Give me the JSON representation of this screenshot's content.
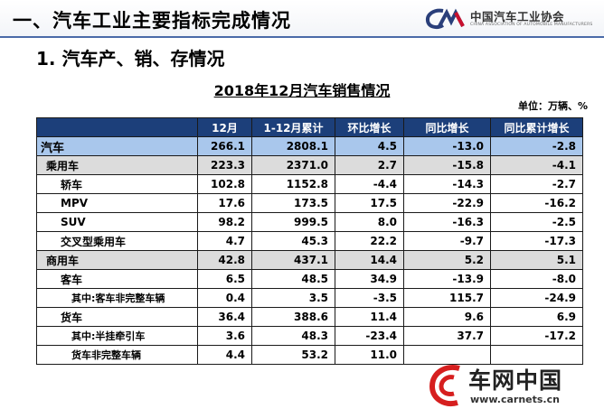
{
  "slide": {
    "title": "一、汽车工业主要指标完成情况",
    "logo_cn": "中国汽车工业协会",
    "logo_en": "CHINA ASSOCIATION OF AUTOMOBILE MANUFACTURERS",
    "section": "1. 汽车产、销、存情况"
  },
  "table": {
    "title": "2018年12月汽车销售情况",
    "unit": "单位：万辆、%",
    "headers": [
      "",
      "12月",
      "1-12月累计",
      "环比增长",
      "同比增长",
      "同比累计增长"
    ],
    "rows": [
      {
        "name": "汽车",
        "level": 0,
        "values": [
          "266.1",
          "2808.1",
          "4.5",
          "-13.0",
          "-2.8"
        ]
      },
      {
        "name": "乘用车",
        "level": 1,
        "values": [
          "223.3",
          "2371.0",
          "2.7",
          "-15.8",
          "-4.1"
        ]
      },
      {
        "name": "轿车",
        "level": 2,
        "values": [
          "102.8",
          "1152.8",
          "-4.4",
          "-14.3",
          "-2.7"
        ]
      },
      {
        "name": "MPV",
        "level": 2,
        "values": [
          "17.6",
          "173.5",
          "17.5",
          "-22.9",
          "-16.2"
        ]
      },
      {
        "name": "SUV",
        "level": 2,
        "values": [
          "98.2",
          "999.5",
          "8.0",
          "-16.3",
          "-2.5"
        ]
      },
      {
        "name": "交叉型乘用车",
        "level": 2,
        "values": [
          "4.7",
          "45.3",
          "22.2",
          "-9.7",
          "-17.3"
        ]
      },
      {
        "name": "商用车",
        "level": 1,
        "values": [
          "42.8",
          "437.1",
          "14.4",
          "5.2",
          "5.1"
        ]
      },
      {
        "name": "客车",
        "level": 2,
        "values": [
          "6.5",
          "48.5",
          "34.9",
          "-13.9",
          "-8.0"
        ]
      },
      {
        "name": "其中:客车非完整车辆",
        "level": 3,
        "values": [
          "0.4",
          "3.5",
          "-3.5",
          "115.7",
          "-24.9"
        ]
      },
      {
        "name": "货车",
        "level": 2,
        "values": [
          "36.4",
          "388.6",
          "11.4",
          "9.6",
          "6.9"
        ]
      },
      {
        "name": "其中:半挂牵引车",
        "level": 3,
        "values": [
          "3.6",
          "48.3",
          "-23.4",
          "37.7",
          "-17.2"
        ]
      },
      {
        "name": "货车非完整车辆",
        "level": 3,
        "values": [
          "4.4",
          "53.2",
          "11.0",
          "",
          ""
        ]
      }
    ]
  },
  "watermark": {
    "text": "车网中国",
    "url": "www.carnets.cn"
  },
  "colors": {
    "header_bg": "#1c3f7a",
    "total_row_bg": "#a9c7ec",
    "category_row_bg": "#dcdcdc",
    "title_rule": "#4a6aa8"
  }
}
